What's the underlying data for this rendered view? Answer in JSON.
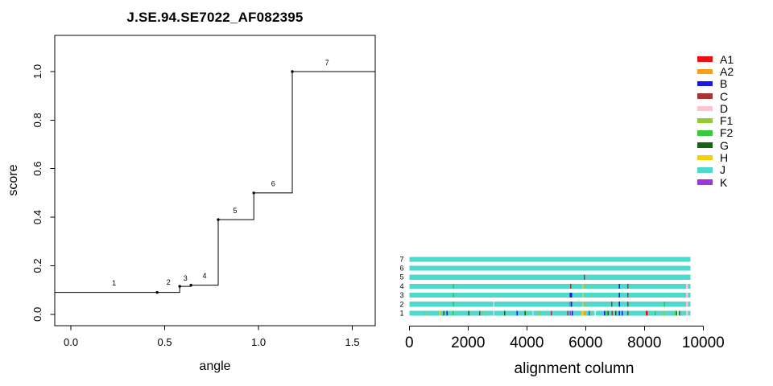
{
  "figure": {
    "background": "#FFFFFF",
    "axis_color": "#000000"
  },
  "colors": {
    "A1": "#EE1111",
    "A2": "#F9A019",
    "B": "#1919E6",
    "C": "#A93434",
    "D": "#FFC3CD",
    "F1": "#92C83A",
    "F2": "#3CC83C",
    "G": "#146414",
    "H": "#F6CE0C",
    "J": "#4DD9CC",
    "K": "#A035D8",
    "gap": "#FFFFFF",
    "line": "#000000"
  },
  "chart_data": [
    {
      "id": "score-vs-angle",
      "type": "line",
      "subtype": "step",
      "title": "J.SE.94.SE7022_AF082395",
      "xlabel": "angle",
      "ylabel": "score",
      "xlim": [
        -0.086,
        1.622
      ],
      "ylim": [
        -0.047,
        1.149
      ],
      "grid": false,
      "x_ticks": [
        {
          "v": 0.0,
          "label": "0.0"
        },
        {
          "v": 0.5,
          "label": "0.5"
        },
        {
          "v": 1.0,
          "label": "1.0"
        },
        {
          "v": 1.5,
          "label": "1.5"
        }
      ],
      "y_ticks": [
        {
          "v": 0.0,
          "label": "0.0"
        },
        {
          "v": 0.2,
          "label": "0.2"
        },
        {
          "v": 0.4,
          "label": "0.4"
        },
        {
          "v": 0.6,
          "label": "0.6"
        },
        {
          "v": 0.8,
          "label": "0.8"
        },
        {
          "v": 1.0,
          "label": "1.0"
        }
      ],
      "step_start_y": 0.09,
      "points": [
        {
          "x": 0.46,
          "y": 0.09
        },
        {
          "x": 0.58,
          "y": 0.115
        },
        {
          "x": 0.64,
          "y": 0.12
        },
        {
          "x": 0.785,
          "y": 0.39
        },
        {
          "x": 0.975,
          "y": 0.5
        },
        {
          "x": 1.18,
          "y": 1.0
        }
      ],
      "end_x": 1.622,
      "segment_labels": [
        {
          "text": "1",
          "x": 0.23,
          "y": 0.128
        },
        {
          "text": "2",
          "x": 0.52,
          "y": 0.132
        },
        {
          "text": "3",
          "x": 0.61,
          "y": 0.148
        },
        {
          "text": "4",
          "x": 0.712,
          "y": 0.158
        },
        {
          "text": "5",
          "x": 0.875,
          "y": 0.427
        },
        {
          "text": "6",
          "x": 1.078,
          "y": 0.538
        },
        {
          "text": "7",
          "x": 1.365,
          "y": 1.036
        }
      ]
    },
    {
      "id": "alignment-map",
      "type": "heatmap",
      "subtype": "subtype-alignment-rows",
      "xlabel": "alignment column",
      "xlim": [
        0,
        10000
      ],
      "x_ticks": [
        {
          "v": 0,
          "label": "0"
        },
        {
          "v": 2000,
          "label": "2000"
        },
        {
          "v": 4000,
          "label": "4000"
        },
        {
          "v": 6000,
          "label": "6000"
        },
        {
          "v": 8000,
          "label": "8000"
        },
        {
          "v": 10000,
          "label": "10000"
        }
      ],
      "row_length": 9573,
      "base_color_key": "J",
      "default_stripe_width": 40,
      "rows": [
        {
          "label": "7",
          "stripes": []
        },
        {
          "label": "6",
          "stripes": []
        },
        {
          "label": "5",
          "stripes": [
            {
              "col": 5960,
              "color": "C"
            }
          ]
        },
        {
          "label": "4",
          "stripes": [
            {
              "col": 1500,
              "color": "F2"
            },
            {
              "col": 5490,
              "color": "C"
            },
            {
              "col": 5900,
              "color": "H"
            },
            {
              "col": 5960,
              "color": "A2"
            },
            {
              "col": 7150,
              "color": "B"
            },
            {
              "col": 7440,
              "color": "C"
            },
            {
              "col": 9450,
              "color": "D",
              "width": 60
            }
          ]
        },
        {
          "label": "3",
          "stripes": [
            {
              "col": 1500,
              "color": "F2"
            },
            {
              "col": 5500,
              "color": "B",
              "width": 80
            },
            {
              "col": 5900,
              "color": "H"
            },
            {
              "col": 7150,
              "color": "B"
            },
            {
              "col": 7440,
              "color": "C"
            },
            {
              "col": 9450,
              "color": "D",
              "width": 60
            }
          ]
        },
        {
          "label": "2",
          "stripes": [
            {
              "col": 1500,
              "color": "F2"
            },
            {
              "col": 2870,
              "color": "D"
            },
            {
              "col": 5470,
              "color": "K",
              "width": 30
            },
            {
              "col": 5520,
              "color": "B",
              "width": 50
            },
            {
              "col": 5900,
              "color": "H"
            },
            {
              "col": 5960,
              "color": "A2"
            },
            {
              "col": 6890,
              "color": "C"
            },
            {
              "col": 7150,
              "color": "B"
            },
            {
              "col": 7440,
              "color": "C"
            },
            {
              "col": 8680,
              "color": "F2"
            },
            {
              "col": 9450,
              "color": "D",
              "width": 60
            }
          ]
        },
        {
          "label": "1",
          "stripes": [
            {
              "col": 530,
              "color": "F1"
            },
            {
              "col": 1040,
              "color": "H"
            },
            {
              "col": 1170,
              "color": "G"
            },
            {
              "col": 1290,
              "color": "B"
            },
            {
              "col": 1490,
              "color": "F2"
            },
            {
              "col": 2020,
              "color": "G"
            },
            {
              "col": 2400,
              "color": "C"
            },
            {
              "col": 2500,
              "color": "F1"
            },
            {
              "col": 2870,
              "color": "D"
            },
            {
              "col": 3250,
              "color": "G"
            },
            {
              "col": 3670,
              "color": "B"
            },
            {
              "col": 3950,
              "color": "G"
            },
            {
              "col": 4200,
              "color": "D"
            },
            {
              "col": 4430,
              "color": "F1"
            },
            {
              "col": 4840,
              "color": "C"
            },
            {
              "col": 5390,
              "color": "C"
            },
            {
              "col": 5480,
              "color": "K"
            },
            {
              "col": 5540,
              "color": "B"
            },
            {
              "col": 5890,
              "color": "H",
              "width": 80
            },
            {
              "col": 5970,
              "color": "A2"
            },
            {
              "col": 6120,
              "color": "C"
            },
            {
              "col": 6320,
              "color": "gap"
            },
            {
              "col": 6640,
              "color": "B"
            },
            {
              "col": 6700,
              "color": "F2"
            },
            {
              "col": 6760,
              "color": "G"
            },
            {
              "col": 6900,
              "color": "C"
            },
            {
              "col": 7030,
              "color": "G"
            },
            {
              "col": 7150,
              "color": "B"
            },
            {
              "col": 7240,
              "color": "B"
            },
            {
              "col": 7440,
              "color": "C"
            },
            {
              "col": 8080,
              "color": "A1",
              "width": 80
            },
            {
              "col": 8370,
              "color": "F2"
            },
            {
              "col": 8650,
              "color": "F1"
            },
            {
              "col": 9050,
              "color": "F2"
            },
            {
              "col": 9110,
              "color": "G"
            },
            {
              "col": 9140,
              "color": "gap"
            },
            {
              "col": 9195,
              "color": "C"
            },
            {
              "col": 9450,
              "color": "D",
              "width": 60
            }
          ]
        }
      ]
    }
  ],
  "legend": {
    "items": [
      {
        "label": "A1",
        "color_key": "A1"
      },
      {
        "label": "A2",
        "color_key": "A2"
      },
      {
        "label": "B",
        "color_key": "B"
      },
      {
        "label": "C",
        "color_key": "C"
      },
      {
        "label": "D",
        "color_key": "D"
      },
      {
        "label": "F1",
        "color_key": "F1"
      },
      {
        "label": "F2",
        "color_key": "F2"
      },
      {
        "label": "G",
        "color_key": "G"
      },
      {
        "label": "H",
        "color_key": "H"
      },
      {
        "label": "J",
        "color_key": "J"
      },
      {
        "label": "K",
        "color_key": "K"
      }
    ]
  }
}
